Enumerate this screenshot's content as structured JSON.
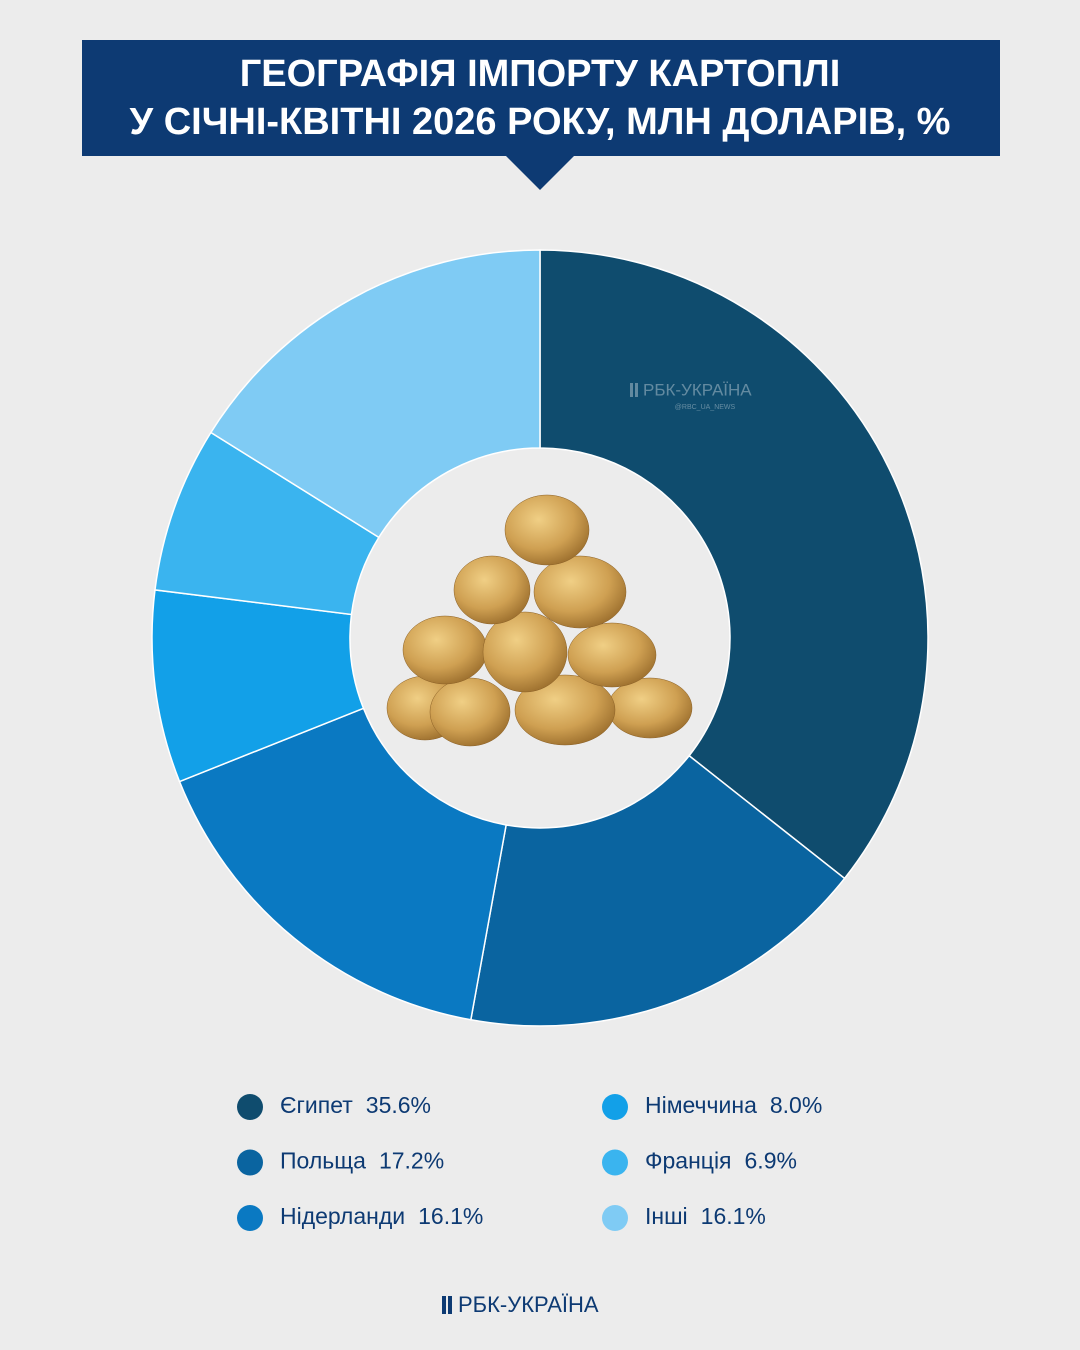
{
  "chart_data": {
    "type": "donut",
    "title": [
      "ГЕОГРАФІЯ ІМПОРТУ КАРТОПЛІ",
      "У СІЧНІ-КВІТНІ 2026 РОКУ, МЛН ДОЛАРІВ, %"
    ],
    "categories": [
      "Єгипет",
      "Польща",
      "Нідерланди",
      "Німеччина",
      "Франція",
      "Інші"
    ],
    "values": [
      35.6,
      17.2,
      16.1,
      8.0,
      6.9,
      16.1
    ],
    "value_labels": [
      "35.6%",
      "17.2%",
      "16.1%",
      "8.0%",
      "6.9%",
      "16.1%"
    ],
    "colors": [
      "#0f4c6e",
      "#0a64a0",
      "#0a79c2",
      "#12a0e8",
      "#3ab4ef",
      "#7fcbf4"
    ],
    "watermark": "РБК-УКРАЇНА",
    "watermark_handle": "@RBC_UA_NEWS",
    "brand": "РБК-УКРАЇНА"
  }
}
